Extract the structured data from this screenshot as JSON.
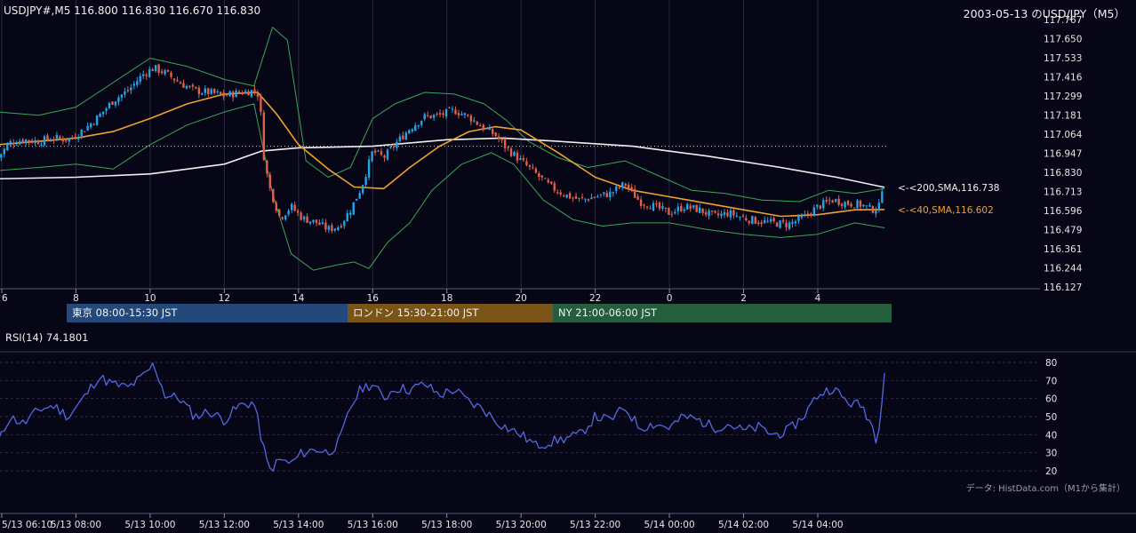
{
  "header": {
    "ohlc": "USDJPY#,M5 116.800 116.830 116.670 116.830",
    "title": "2003-05-13 のUSD/JPY（M5）",
    "rsi_label": "RSI(14) 74.1801",
    "credit": "データ: HistData.com（M1から集計）"
  },
  "sessions": [
    {
      "label": "東京 08:00-15:30 JST",
      "color": "#23487a"
    },
    {
      "label": "ロンドン 15:30-21:00 JST",
      "color": "#7a5416"
    },
    {
      "label": "NY 21:00-06:00 JST",
      "color": "#245e3c"
    }
  ],
  "colors": {
    "background": "#060616",
    "bull": "#25a3e8",
    "bear": "#e0604a",
    "sma40": "#f0a030",
    "sma200": "#f0f0f0",
    "bollinger": "#3aa655",
    "rsi": "#5568e0",
    "grid": "#2a2a40"
  },
  "chart_data": [
    {
      "type": "candlestick",
      "symbol": "USDJPY#",
      "timeframe": "M5",
      "ylim": [
        116.127,
        117.767
      ],
      "y_ticks": [
        "117.767",
        "117.650",
        "117.533",
        "117.416",
        "117.299",
        "117.181",
        "117.064",
        "116.947",
        "116.830",
        "116.713",
        "116.596",
        "116.479",
        "116.361",
        "116.244",
        "116.127"
      ],
      "x_ticks": [
        "6",
        "8",
        "10",
        "12",
        "14",
        "16",
        "18",
        "20",
        "22",
        "0",
        "2",
        "4"
      ],
      "x_hours": [
        6,
        8,
        10,
        12,
        14,
        16,
        18,
        20,
        22,
        24,
        26,
        28
      ],
      "reference_price": 116.99,
      "annotations": [
        {
          "text": "<-<200,SMA,116.738",
          "value": 116.738,
          "color": "#f0f0f0"
        },
        {
          "text": "<-<40,SMA,116.602",
          "value": 116.602,
          "color": "#f0a030"
        }
      ],
      "price_path": [
        [
          5.9,
          116.92
        ],
        [
          6.2,
          117.01
        ],
        [
          6.6,
          117.03
        ],
        [
          7.0,
          117.02
        ],
        [
          7.4,
          117.04
        ],
        [
          7.8,
          117.03
        ],
        [
          8.2,
          117.09
        ],
        [
          8.6,
          117.17
        ],
        [
          9.0,
          117.27
        ],
        [
          9.4,
          117.33
        ],
        [
          9.8,
          117.43
        ],
        [
          10.1,
          117.47
        ],
        [
          10.4,
          117.44
        ],
        [
          10.8,
          117.38
        ],
        [
          11.2,
          117.33
        ],
        [
          11.6,
          117.32
        ],
        [
          12.0,
          117.3
        ],
        [
          12.4,
          117.32
        ],
        [
          12.8,
          117.33
        ],
        [
          12.95,
          117.3
        ],
        [
          13.05,
          116.95
        ],
        [
          13.2,
          116.75
        ],
        [
          13.5,
          116.55
        ],
        [
          13.8,
          116.62
        ],
        [
          14.1,
          116.55
        ],
        [
          14.5,
          116.52
        ],
        [
          14.8,
          116.48
        ],
        [
          15.1,
          116.5
        ],
        [
          15.4,
          116.6
        ],
        [
          15.7,
          116.74
        ],
        [
          16.0,
          116.96
        ],
        [
          16.3,
          116.92
        ],
        [
          16.6,
          117.0
        ],
        [
          17.0,
          117.1
        ],
        [
          17.4,
          117.17
        ],
        [
          17.8,
          117.18
        ],
        [
          18.2,
          117.21
        ],
        [
          18.6,
          117.17
        ],
        [
          19.0,
          117.1
        ],
        [
          19.3,
          117.06
        ],
        [
          19.6,
          116.98
        ],
        [
          20.0,
          116.9
        ],
        [
          20.4,
          116.82
        ],
        [
          20.8,
          116.74
        ],
        [
          21.2,
          116.69
        ],
        [
          21.6,
          116.66
        ],
        [
          22.0,
          116.68
        ],
        [
          22.4,
          116.7
        ],
        [
          22.8,
          116.76
        ],
        [
          23.2,
          116.65
        ],
        [
          23.6,
          116.62
        ],
        [
          24.0,
          116.58
        ],
        [
          24.4,
          116.62
        ],
        [
          24.8,
          116.6
        ],
        [
          25.2,
          116.56
        ],
        [
          25.6,
          116.58
        ],
        [
          26.0,
          116.55
        ],
        [
          26.4,
          116.53
        ],
        [
          26.8,
          116.52
        ],
        [
          27.2,
          116.51
        ],
        [
          27.6,
          116.55
        ],
        [
          28.0,
          116.62
        ],
        [
          28.4,
          116.66
        ],
        [
          28.8,
          116.64
        ],
        [
          29.2,
          116.63
        ],
        [
          29.45,
          116.6
        ],
        [
          29.65,
          116.62
        ],
        [
          29.8,
          116.83
        ]
      ],
      "sma40": [
        [
          5.9,
          117.0
        ],
        [
          7.0,
          117.02
        ],
        [
          8.0,
          117.04
        ],
        [
          9.0,
          117.08
        ],
        [
          10.0,
          117.16
        ],
        [
          11.0,
          117.25
        ],
        [
          12.0,
          117.31
        ],
        [
          12.9,
          117.32
        ],
        [
          13.4,
          117.19
        ],
        [
          14.0,
          117.0
        ],
        [
          14.8,
          116.85
        ],
        [
          15.5,
          116.74
        ],
        [
          16.3,
          116.73
        ],
        [
          17.0,
          116.86
        ],
        [
          17.8,
          116.99
        ],
        [
          18.6,
          117.08
        ],
        [
          19.3,
          117.11
        ],
        [
          20.0,
          117.09
        ],
        [
          21.0,
          116.95
        ],
        [
          22.0,
          116.8
        ],
        [
          23.0,
          116.72
        ],
        [
          24.0,
          116.68
        ],
        [
          25.0,
          116.64
        ],
        [
          26.0,
          116.6
        ],
        [
          27.0,
          116.56
        ],
        [
          28.0,
          116.57
        ],
        [
          29.0,
          116.6
        ],
        [
          29.8,
          116.602
        ]
      ],
      "sma200": [
        [
          5.9,
          116.79
        ],
        [
          8.0,
          116.8
        ],
        [
          10.0,
          116.82
        ],
        [
          12.0,
          116.88
        ],
        [
          13.0,
          116.96
        ],
        [
          14.0,
          116.98
        ],
        [
          16.0,
          116.99
        ],
        [
          18.0,
          117.03
        ],
        [
          19.5,
          117.04
        ],
        [
          21.0,
          117.02
        ],
        [
          23.0,
          116.99
        ],
        [
          25.0,
          116.93
        ],
        [
          27.0,
          116.86
        ],
        [
          28.5,
          116.8
        ],
        [
          29.8,
          116.738
        ]
      ],
      "bollinger_upper": [
        [
          5.9,
          117.2
        ],
        [
          7.0,
          117.18
        ],
        [
          8.0,
          117.23
        ],
        [
          9.0,
          117.38
        ],
        [
          10.0,
          117.53
        ],
        [
          11.0,
          117.48
        ],
        [
          12.0,
          117.4
        ],
        [
          12.8,
          117.36
        ],
        [
          13.3,
          117.72
        ],
        [
          13.7,
          117.64
        ],
        [
          14.2,
          116.9
        ],
        [
          14.8,
          116.8
        ],
        [
          15.4,
          116.86
        ],
        [
          16.0,
          117.16
        ],
        [
          16.6,
          117.25
        ],
        [
          17.4,
          117.32
        ],
        [
          18.2,
          117.31
        ],
        [
          19.0,
          117.25
        ],
        [
          19.6,
          117.15
        ],
        [
          20.2,
          117.02
        ],
        [
          21.0,
          116.92
        ],
        [
          21.8,
          116.86
        ],
        [
          22.8,
          116.9
        ],
        [
          23.8,
          116.8
        ],
        [
          24.6,
          116.72
        ],
        [
          25.5,
          116.7
        ],
        [
          26.5,
          116.66
        ],
        [
          27.5,
          116.65
        ],
        [
          28.3,
          116.72
        ],
        [
          29.0,
          116.7
        ],
        [
          29.8,
          116.73
        ]
      ],
      "bollinger_lower": [
        [
          5.9,
          116.84
        ],
        [
          7.0,
          116.86
        ],
        [
          8.0,
          116.88
        ],
        [
          9.0,
          116.85
        ],
        [
          10.0,
          117.0
        ],
        [
          11.0,
          117.12
        ],
        [
          12.0,
          117.2
        ],
        [
          12.8,
          117.25
        ],
        [
          13.3,
          116.7
        ],
        [
          13.8,
          116.33
        ],
        [
          14.4,
          116.23
        ],
        [
          15.0,
          116.26
        ],
        [
          15.5,
          116.28
        ],
        [
          15.9,
          116.24
        ],
        [
          16.4,
          116.4
        ],
        [
          17.0,
          116.52
        ],
        [
          17.6,
          116.72
        ],
        [
          18.4,
          116.88
        ],
        [
          19.2,
          116.95
        ],
        [
          19.8,
          116.88
        ],
        [
          20.6,
          116.66
        ],
        [
          21.4,
          116.54
        ],
        [
          22.2,
          116.5
        ],
        [
          23.0,
          116.52
        ],
        [
          24.0,
          116.52
        ],
        [
          25.0,
          116.48
        ],
        [
          26.0,
          116.45
        ],
        [
          27.0,
          116.43
        ],
        [
          28.0,
          116.45
        ],
        [
          29.0,
          116.52
        ],
        [
          29.8,
          116.49
        ]
      ]
    },
    {
      "type": "line",
      "name": "RSI(14)",
      "ylim": [
        15,
        85
      ],
      "y_ticks": [
        "80",
        "70",
        "60",
        "50",
        "40",
        "30",
        "20"
      ],
      "x_ticks": [
        "5/13 06:10",
        "5/13 08:00",
        "5/13 10:00",
        "5/13 12:00",
        "5/13 14:00",
        "5/13 16:00",
        "5/13 18:00",
        "5/13 20:00",
        "5/13 22:00",
        "5/14 00:00",
        "5/14 02:00",
        "5/14 04:00"
      ],
      "values": [
        [
          5.9,
          35
        ],
        [
          6.2,
          50
        ],
        [
          6.6,
          46
        ],
        [
          7.0,
          54
        ],
        [
          7.4,
          56
        ],
        [
          7.8,
          50
        ],
        [
          8.2,
          60
        ],
        [
          8.6,
          72
        ],
        [
          9.0,
          68
        ],
        [
          9.4,
          66
        ],
        [
          9.8,
          72
        ],
        [
          10.1,
          79
        ],
        [
          10.4,
          62
        ],
        [
          10.8,
          60
        ],
        [
          11.2,
          50
        ],
        [
          11.6,
          53
        ],
        [
          12.0,
          48
        ],
        [
          12.4,
          56
        ],
        [
          12.8,
          58
        ],
        [
          13.0,
          38
        ],
        [
          13.2,
          20
        ],
        [
          13.5,
          26
        ],
        [
          13.8,
          24
        ],
        [
          14.1,
          30
        ],
        [
          14.5,
          32
        ],
        [
          14.8,
          30
        ],
        [
          15.1,
          36
        ],
        [
          15.4,
          55
        ],
        [
          15.7,
          66
        ],
        [
          16.0,
          68
        ],
        [
          16.3,
          60
        ],
        [
          16.6,
          66
        ],
        [
          17.0,
          65
        ],
        [
          17.4,
          68
        ],
        [
          17.8,
          62
        ],
        [
          18.2,
          65
        ],
        [
          18.6,
          58
        ],
        [
          19.0,
          54
        ],
        [
          19.3,
          48
        ],
        [
          19.6,
          44
        ],
        [
          20.0,
          40
        ],
        [
          20.4,
          34
        ],
        [
          20.8,
          36
        ],
        [
          21.2,
          38
        ],
        [
          21.6,
          40
        ],
        [
          22.0,
          50
        ],
        [
          22.4,
          48
        ],
        [
          22.8,
          55
        ],
        [
          23.2,
          44
        ],
        [
          23.6,
          46
        ],
        [
          24.0,
          44
        ],
        [
          24.4,
          50
        ],
        [
          24.8,
          48
        ],
        [
          25.2,
          44
        ],
        [
          25.6,
          46
        ],
        [
          26.0,
          42
        ],
        [
          26.4,
          44
        ],
        [
          26.8,
          40
        ],
        [
          27.2,
          42
        ],
        [
          27.6,
          50
        ],
        [
          28.0,
          62
        ],
        [
          28.4,
          66
        ],
        [
          28.8,
          58
        ],
        [
          29.2,
          56
        ],
        [
          29.45,
          46
        ],
        [
          29.6,
          36
        ],
        [
          29.8,
          74.18
        ]
      ]
    }
  ]
}
